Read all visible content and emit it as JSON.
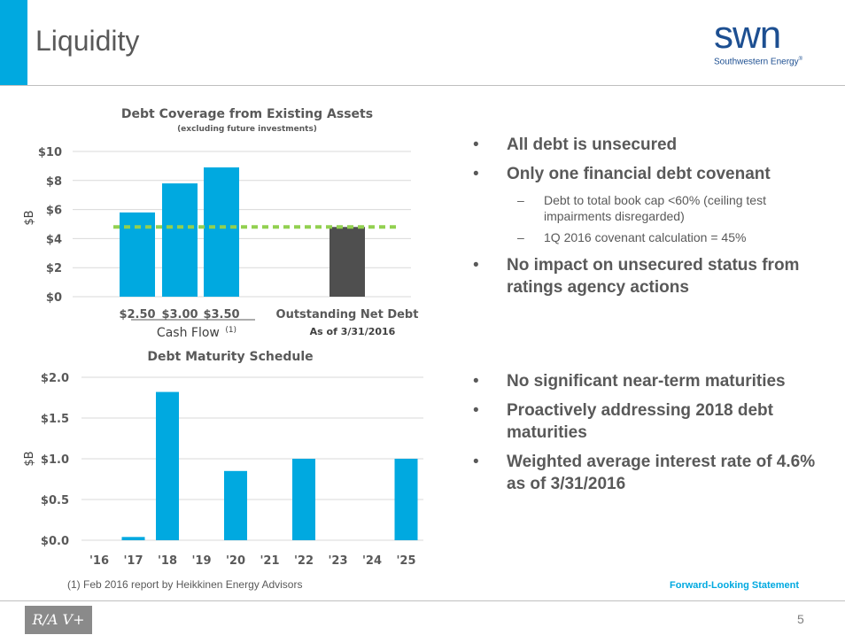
{
  "header": {
    "title": "Liquidity"
  },
  "logo": {
    "wordmark": "swn",
    "company": "Southwestern Energy",
    "registered": "®"
  },
  "colors": {
    "accent": "#00a9e0",
    "brand": "#1d4f91",
    "bar_dark": "#4f4f4f",
    "reference_line": "#92d050"
  },
  "chart_coverage": {
    "title": "Debt Coverage from Existing Assets",
    "subtitle": "(excluding future investments)",
    "ylabel": "$B",
    "yticks": [
      "$10",
      "$8",
      "$6",
      "$4",
      "$2",
      "$0"
    ],
    "xlabels": [
      "$2.50",
      "$3.00",
      "$3.50",
      "Outstanding Net Debt"
    ],
    "group_label": "Cash Flow",
    "group_sup": "(1)",
    "date_label": "As of 3/31/2016"
  },
  "chart_maturity": {
    "title": "Debt Maturity Schedule",
    "ylabel": "$B",
    "yticks": [
      "$2.0",
      "$1.5",
      "$1.0",
      "$0.5",
      "$0.0"
    ],
    "xlabels": [
      "'16",
      "'17",
      "'18",
      "'19",
      "'20",
      "'21",
      "'22",
      "'23",
      "'24",
      "'25"
    ]
  },
  "chart_data": [
    {
      "type": "bar",
      "title": "Debt Coverage from Existing Assets",
      "subtitle": "(excluding future investments)",
      "categories": [
        "$2.50",
        "$3.00",
        "$3.50",
        "Outstanding Net Debt"
      ],
      "values": [
        5.8,
        7.8,
        8.9,
        4.8
      ],
      "reference_line": 4.8,
      "ylabel": "$B",
      "ylim": [
        0,
        10
      ],
      "grid": true
    },
    {
      "type": "bar",
      "title": "Debt Maturity Schedule",
      "categories": [
        "'16",
        "'17",
        "'18",
        "'19",
        "'20",
        "'21",
        "'22",
        "'23",
        "'24",
        "'25"
      ],
      "values": [
        0,
        0.04,
        1.82,
        0,
        0.85,
        0,
        1.0,
        0,
        0,
        1.0
      ],
      "ylabel": "$B",
      "ylim": [
        0,
        2.0
      ],
      "grid": true
    }
  ],
  "bullets_top": [
    {
      "text": "All debt is unsecured"
    },
    {
      "text": "Only one financial debt covenant"
    },
    {
      "text": "Debt to total book cap <60% (ceiling test impairments disregarded)"
    },
    {
      "text": "1Q 2016 covenant calculation = 45%"
    },
    {
      "text": "No impact on unsecured status from ratings agency actions"
    }
  ],
  "bullets_bottom": [
    {
      "text": "No significant near-term maturities"
    },
    {
      "text": "Proactively addressing 2018 debt maturities"
    },
    {
      "text": "Weighted average interest rate of 4.6% as of 3/31/2016"
    }
  ],
  "footer": {
    "footnote": "(1) Feb 2016 report by Heikkinen Energy Advisors",
    "link": "Forward-Looking Statement",
    "page_number": "5",
    "badge": "R/A V+"
  }
}
